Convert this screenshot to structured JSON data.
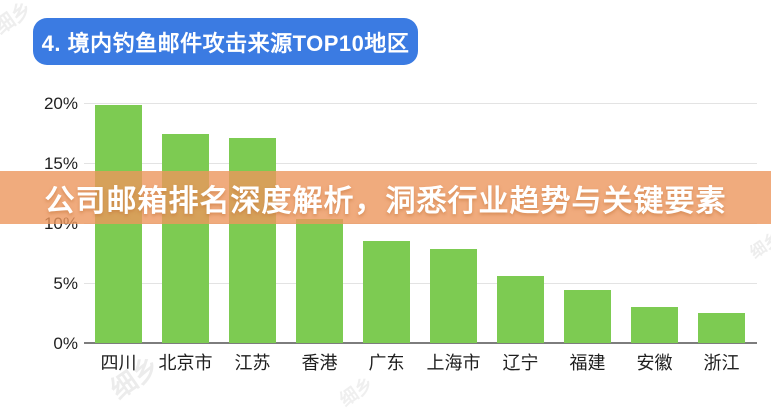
{
  "header": {
    "badge_label": "4. 境内钓鱼邮件攻击来源TOP10地区",
    "badge_color": "#3b7be2"
  },
  "overlay_banner": {
    "text": "公司邮箱排名深度解析，洞悉行业趋势与关键要素",
    "bg_color": "rgba(236,150,92,0.8)",
    "text_color": "#ffffff"
  },
  "chart_data": {
    "type": "bar",
    "title": "境内钓鱼邮件攻击来源TOP10地区",
    "categories": [
      "四川",
      "北京市",
      "江苏",
      "香港",
      "广东",
      "上海市",
      "辽宁",
      "福建",
      "安徽",
      "浙江"
    ],
    "values": [
      19.8,
      17.4,
      17.1,
      10.3,
      8.5,
      7.8,
      5.6,
      4.4,
      3.0,
      2.5
    ],
    "unit": "%",
    "xlabel": "",
    "ylabel": "",
    "ylim": [
      0,
      20
    ],
    "yticks": [
      0,
      5,
      10,
      15,
      20
    ],
    "ytick_labels": [
      "0%",
      "5%",
      "10%",
      "15%",
      "20%"
    ],
    "grid": true,
    "legend": false,
    "bar_color": "#7dcb52"
  },
  "watermark": {
    "text": "细乡"
  }
}
